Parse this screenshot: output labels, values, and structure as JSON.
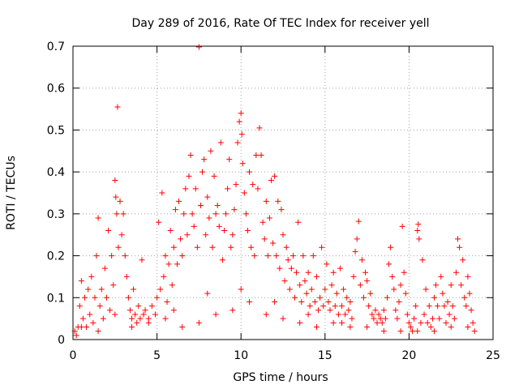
{
  "chart_data": {
    "type": "scatter",
    "title": "Day 289 of 2016, Rate Of TEC Index for receiver yell",
    "xlabel": "GPS time / hours",
    "ylabel": "ROTI / TECUs",
    "xlim": [
      0,
      25
    ],
    "ylim": [
      0,
      0.7
    ],
    "xticks": [
      0,
      5,
      10,
      15,
      20,
      25
    ],
    "xtick_labels": [
      "0",
      "5",
      "10",
      "15",
      "20",
      "25"
    ],
    "yticks": [
      0,
      0.1,
      0.2,
      0.3,
      0.4,
      0.5,
      0.6,
      0.7
    ],
    "ytick_labels": [
      "0",
      "0.1",
      "0.2",
      "0.3",
      "0.4",
      "0.5",
      "0.6",
      "0.7"
    ],
    "grid": true,
    "marker": "plus",
    "color": "#ff0000",
    "series": [
      {
        "name": "ROTI",
        "points": [
          [
            0.1,
            0.02
          ],
          [
            0.2,
            0.01
          ],
          [
            0.3,
            0.03
          ],
          [
            0.4,
            0.08
          ],
          [
            0.5,
            0.14
          ],
          [
            0.6,
            0.05
          ],
          [
            0.7,
            0.1
          ],
          [
            0.8,
            0.03
          ],
          [
            0.9,
            0.12
          ],
          [
            1.0,
            0.06
          ],
          [
            1.1,
            0.15
          ],
          [
            1.2,
            0.04
          ],
          [
            1.3,
            0.1
          ],
          [
            1.4,
            0.2
          ],
          [
            1.5,
            0.29
          ],
          [
            1.6,
            0.08
          ],
          [
            1.7,
            0.12
          ],
          [
            1.8,
            0.05
          ],
          [
            1.9,
            0.17
          ],
          [
            2.0,
            0.1
          ],
          [
            2.1,
            0.26
          ],
          [
            2.2,
            0.07
          ],
          [
            2.3,
            0.2
          ],
          [
            2.4,
            0.13
          ],
          [
            2.5,
            0.38
          ],
          [
            2.55,
            0.34
          ],
          [
            2.6,
            0.3
          ],
          [
            2.65,
            0.555
          ],
          [
            2.7,
            0.22
          ],
          [
            2.8,
            0.33
          ],
          [
            2.9,
            0.25
          ],
          [
            3.0,
            0.3
          ],
          [
            3.1,
            0.2
          ],
          [
            3.2,
            0.15
          ],
          [
            3.3,
            0.1
          ],
          [
            3.4,
            0.07
          ],
          [
            3.5,
            0.05
          ],
          [
            3.6,
            0.12
          ],
          [
            3.7,
            0.06
          ],
          [
            3.8,
            0.04
          ],
          [
            3.9,
            0.08
          ],
          [
            4.0,
            0.05
          ],
          [
            4.1,
            0.19
          ],
          [
            4.2,
            0.06
          ],
          [
            4.3,
            0.07
          ],
          [
            4.5,
            0.05
          ],
          [
            4.7,
            0.08
          ],
          [
            4.9,
            0.06
          ],
          [
            5.0,
            0.1
          ],
          [
            5.1,
            0.28
          ],
          [
            5.2,
            0.12
          ],
          [
            5.3,
            0.35
          ],
          [
            5.4,
            0.15
          ],
          [
            5.5,
            0.2
          ],
          [
            5.6,
            0.09
          ],
          [
            5.7,
            0.18
          ],
          [
            5.8,
            0.26
          ],
          [
            5.9,
            0.13
          ],
          [
            6.0,
            0.22
          ],
          [
            6.1,
            0.31
          ],
          [
            6.2,
            0.18
          ],
          [
            6.3,
            0.33
          ],
          [
            6.4,
            0.24
          ],
          [
            6.5,
            0.2
          ],
          [
            6.6,
            0.3
          ],
          [
            6.7,
            0.36
          ],
          [
            6.8,
            0.25
          ],
          [
            6.9,
            0.39
          ],
          [
            7.0,
            0.44
          ],
          [
            7.1,
            0.3
          ],
          [
            7.2,
            0.27
          ],
          [
            7.3,
            0.36
          ],
          [
            7.4,
            0.22
          ],
          [
            7.5,
            0.698
          ],
          [
            7.6,
            0.32
          ],
          [
            7.7,
            0.4
          ],
          [
            7.8,
            0.43
          ],
          [
            7.9,
            0.25
          ],
          [
            8.0,
            0.34
          ],
          [
            8.1,
            0.29
          ],
          [
            8.2,
            0.45
          ],
          [
            8.3,
            0.22
          ],
          [
            8.4,
            0.39
          ],
          [
            8.5,
            0.3
          ],
          [
            8.6,
            0.32
          ],
          [
            8.7,
            0.27
          ],
          [
            8.8,
            0.47
          ],
          [
            8.9,
            0.19
          ],
          [
            9.0,
            0.26
          ],
          [
            9.1,
            0.3
          ],
          [
            9.2,
            0.36
          ],
          [
            9.3,
            0.43
          ],
          [
            9.4,
            0.22
          ],
          [
            9.5,
            0.25
          ],
          [
            9.6,
            0.31
          ],
          [
            9.7,
            0.37
          ],
          [
            9.8,
            0.47
          ],
          [
            9.9,
            0.52
          ],
          [
            10.0,
            0.54
          ],
          [
            10.05,
            0.49
          ],
          [
            10.1,
            0.42
          ],
          [
            10.2,
            0.35
          ],
          [
            10.3,
            0.3
          ],
          [
            10.4,
            0.26
          ],
          [
            10.5,
            0.4
          ],
          [
            10.6,
            0.22
          ],
          [
            10.7,
            0.37
          ],
          [
            10.8,
            0.2
          ],
          [
            10.9,
            0.44
          ],
          [
            11.0,
            0.36
          ],
          [
            11.1,
            0.505
          ],
          [
            11.2,
            0.44
          ],
          [
            11.3,
            0.28
          ],
          [
            11.4,
            0.24
          ],
          [
            11.5,
            0.33
          ],
          [
            11.6,
            0.2
          ],
          [
            11.7,
            0.29
          ],
          [
            11.8,
            0.38
          ],
          [
            11.9,
            0.23
          ],
          [
            12.0,
            0.39
          ],
          [
            12.1,
            0.2
          ],
          [
            12.2,
            0.33
          ],
          [
            12.3,
            0.17
          ],
          [
            12.4,
            0.31
          ],
          [
            12.5,
            0.25
          ],
          [
            12.6,
            0.14
          ],
          [
            12.7,
            0.22
          ],
          [
            12.8,
            0.19
          ],
          [
            12.9,
            0.12
          ],
          [
            13.0,
            0.17
          ],
          [
            13.1,
            0.2
          ],
          [
            13.2,
            0.1
          ],
          [
            13.3,
            0.16
          ],
          [
            13.4,
            0.28
          ],
          [
            13.5,
            0.13
          ],
          [
            13.6,
            0.09
          ],
          [
            13.7,
            0.2
          ],
          [
            13.8,
            0.14
          ],
          [
            13.9,
            0.11
          ],
          [
            14.0,
            0.16
          ],
          [
            14.1,
            0.08
          ],
          [
            14.2,
            0.12
          ],
          [
            14.3,
            0.2
          ],
          [
            14.4,
            0.09
          ],
          [
            14.5,
            0.15
          ],
          [
            14.6,
            0.07
          ],
          [
            14.7,
            0.1
          ],
          [
            14.8,
            0.22
          ],
          [
            14.9,
            0.08
          ],
          [
            15.0,
            0.12
          ],
          [
            15.1,
            0.18
          ],
          [
            15.2,
            0.09
          ],
          [
            15.3,
            0.07
          ],
          [
            15.4,
            0.13
          ],
          [
            15.5,
            0.16
          ],
          [
            15.6,
            0.08
          ],
          [
            15.7,
            0.11
          ],
          [
            15.8,
            0.06
          ],
          [
            15.9,
            0.17
          ],
          [
            16.0,
            0.08
          ],
          [
            16.1,
            0.12
          ],
          [
            16.2,
            0.06
          ],
          [
            16.3,
            0.1
          ],
          [
            16.4,
            0.07
          ],
          [
            16.5,
            0.09
          ],
          [
            16.6,
            0.05
          ],
          [
            16.7,
            0.15
          ],
          [
            16.8,
            0.21
          ],
          [
            16.9,
            0.24
          ],
          [
            17.0,
            0.282
          ],
          [
            17.1,
            0.13
          ],
          [
            17.2,
            0.19
          ],
          [
            17.3,
            0.1
          ],
          [
            17.4,
            0.16
          ],
          [
            17.5,
            0.14
          ],
          [
            17.6,
            0.08
          ],
          [
            17.7,
            0.11
          ],
          [
            17.8,
            0.06
          ],
          [
            17.9,
            0.05
          ],
          [
            18.0,
            0.07
          ],
          [
            18.1,
            0.04
          ],
          [
            18.2,
            0.06
          ],
          [
            18.3,
            0.05
          ],
          [
            18.4,
            0.04
          ],
          [
            18.5,
            0.07
          ],
          [
            18.6,
            0.05
          ],
          [
            18.7,
            0.1
          ],
          [
            18.8,
            0.18
          ],
          [
            18.9,
            0.22
          ],
          [
            19.0,
            0.15
          ],
          [
            19.1,
            0.12
          ],
          [
            19.2,
            0.07
          ],
          [
            19.3,
            0.05
          ],
          [
            19.4,
            0.09
          ],
          [
            19.5,
            0.13
          ],
          [
            19.6,
            0.27
          ],
          [
            19.7,
            0.16
          ],
          [
            19.8,
            0.11
          ],
          [
            19.9,
            0.06
          ],
          [
            20.0,
            0.04
          ],
          [
            20.1,
            0.03
          ],
          [
            20.2,
            0.02
          ],
          [
            20.3,
            0.05
          ],
          [
            20.4,
            0.08
          ],
          [
            20.5,
            0.26
          ],
          [
            20.55,
            0.275
          ],
          [
            20.6,
            0.24
          ],
          [
            20.7,
            0.04
          ],
          [
            20.8,
            0.19
          ],
          [
            20.9,
            0.06
          ],
          [
            21.0,
            0.12
          ],
          [
            21.1,
            0.04
          ],
          [
            21.2,
            0.08
          ],
          [
            21.3,
            0.03
          ],
          [
            21.4,
            0.05
          ],
          [
            21.5,
            0.1
          ],
          [
            21.6,
            0.13
          ],
          [
            21.7,
            0.08
          ],
          [
            21.8,
            0.05
          ],
          [
            21.9,
            0.15
          ],
          [
            22.0,
            0.11
          ],
          [
            22.1,
            0.08
          ],
          [
            22.2,
            0.04
          ],
          [
            22.3,
            0.09
          ],
          [
            22.4,
            0.06
          ],
          [
            22.5,
            0.13
          ],
          [
            22.6,
            0.08
          ],
          [
            22.7,
            0.05
          ],
          [
            22.8,
            0.16
          ],
          [
            22.9,
            0.24
          ],
          [
            23.0,
            0.22
          ],
          [
            23.1,
            0.13
          ],
          [
            23.2,
            0.19
          ],
          [
            23.3,
            0.1
          ],
          [
            23.4,
            0.08
          ],
          [
            23.5,
            0.15
          ],
          [
            23.6,
            0.11
          ],
          [
            23.7,
            0.07
          ],
          [
            23.8,
            0.04
          ],
          [
            23.9,
            0.02
          ],
          [
            0.5,
            0.03
          ],
          [
            1.5,
            0.02
          ],
          [
            2.5,
            0.06
          ],
          [
            3.5,
            0.03
          ],
          [
            4.5,
            0.04
          ],
          [
            5.5,
            0.05
          ],
          [
            6.5,
            0.03
          ],
          [
            7.5,
            0.04
          ],
          [
            8.5,
            0.06
          ],
          [
            9.5,
            0.07
          ],
          [
            10.5,
            0.09
          ],
          [
            11.5,
            0.06
          ],
          [
            12.5,
            0.05
          ],
          [
            13.5,
            0.04
          ],
          [
            14.5,
            0.03
          ],
          [
            15.5,
            0.04
          ],
          [
            16.5,
            0.03
          ],
          [
            17.5,
            0.03
          ],
          [
            18.5,
            0.02
          ],
          [
            19.5,
            0.02
          ],
          [
            20.5,
            0.02
          ],
          [
            21.5,
            0.02
          ],
          [
            22.5,
            0.03
          ],
          [
            23.5,
            0.03
          ],
          [
            6.0,
            0.07
          ],
          [
            8.0,
            0.11
          ],
          [
            10.0,
            0.12
          ],
          [
            12.0,
            0.09
          ],
          [
            14.0,
            0.06
          ],
          [
            16.0,
            0.04
          ]
        ]
      }
    ]
  }
}
